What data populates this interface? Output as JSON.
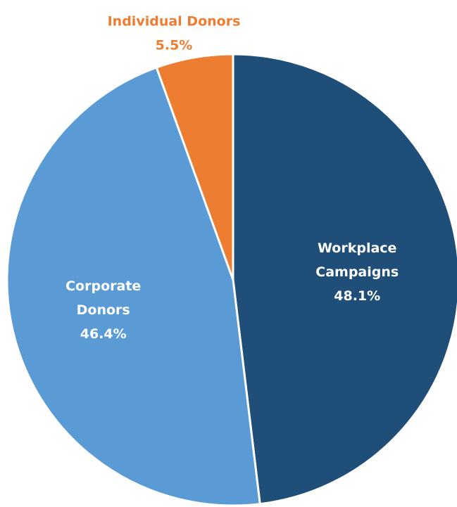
{
  "chart_data": {
    "type": "pie",
    "title": "",
    "legend": "none",
    "slices": [
      {
        "name": "Workplace Campaigns",
        "label_lines": [
          "Workplace",
          "Campaigns"
        ],
        "value": 48.1,
        "value_label": "48.1%",
        "color": "#1f4e79",
        "label_color": "#ffffff"
      },
      {
        "name": "Corporate Donors",
        "label_lines": [
          "Corporate",
          "Donors"
        ],
        "value": 46.4,
        "value_label": "46.4%",
        "color": "#5b9bd5",
        "label_color": "#ffffff"
      },
      {
        "name": "Individual Donors",
        "label_lines": [
          "Individual Donors"
        ],
        "value": 5.5,
        "value_label": "5.5%",
        "color": "#ed7d31",
        "label_color": "#ed7d31"
      }
    ]
  }
}
